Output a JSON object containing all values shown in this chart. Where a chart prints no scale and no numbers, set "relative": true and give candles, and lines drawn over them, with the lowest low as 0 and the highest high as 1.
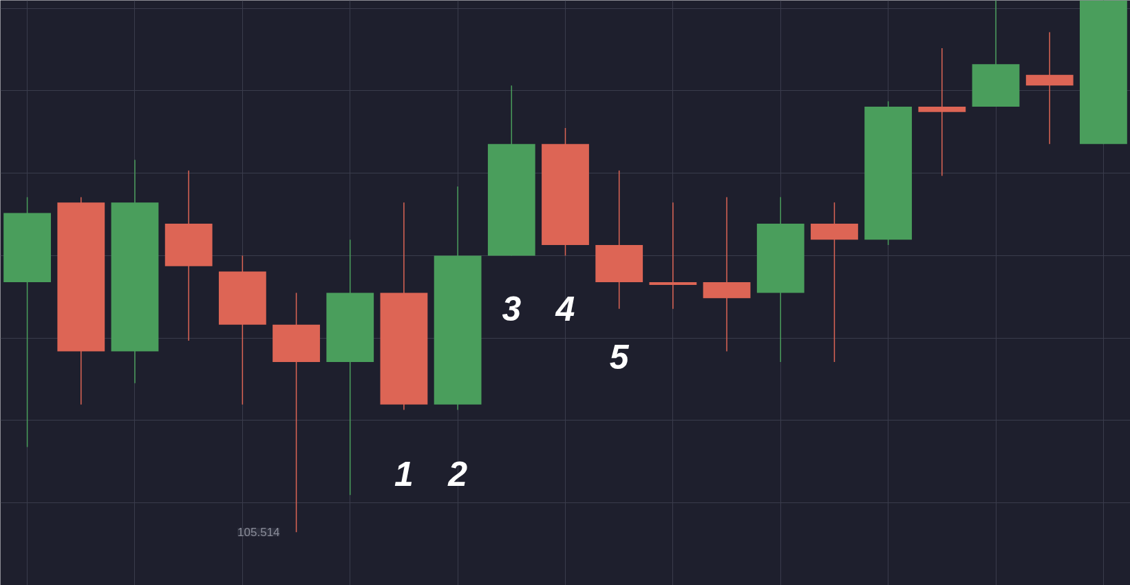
{
  "chart_data": {
    "type": "candlestick",
    "relative": true,
    "grid": true,
    "tick_labels": false,
    "categories": [
      null,
      null,
      null,
      null,
      null,
      null,
      null,
      null,
      null,
      null,
      null,
      null,
      null,
      null,
      null,
      null,
      null,
      null,
      null,
      null,
      null
    ],
    "colors": [
      "#4a9e5c",
      "#dd6555",
      "#4a9e5c",
      "#dd6555",
      "#dd6555",
      "#dd6555",
      "#4a9e5c",
      "#dd6555",
      "#4a9e5c",
      "#4a9e5c",
      "#dd6555",
      "#dd6555",
      "#dd6555",
      "#dd6555",
      "#4a9e5c",
      "#dd6555",
      "#4a9e5c",
      "#dd6555",
      "#4a9e5c",
      "#dd6555",
      "#4a9e5c"
    ],
    "ohlc": [
      [
        0.47,
        0.63,
        0.16,
        0.6
      ],
      [
        0.62,
        0.63,
        0.24,
        0.34
      ],
      [
        0.34,
        0.7,
        0.28,
        0.62
      ],
      [
        0.58,
        0.68,
        0.36,
        0.5
      ],
      [
        0.49,
        0.52,
        0.24,
        0.39
      ],
      [
        0.39,
        0.45,
        0,
        0.32
      ],
      [
        0.32,
        0.55,
        0.07,
        0.45
      ],
      [
        0.45,
        0.62,
        0.23,
        0.24
      ],
      [
        0.24,
        0.65,
        0.23,
        0.52
      ],
      [
        0.52,
        0.84,
        0.52,
        0.73
      ],
      [
        0.73,
        0.76,
        0.52,
        0.54
      ],
      [
        0.54,
        0.68,
        0.42,
        0.47
      ],
      [
        0.47,
        0.62,
        0.42,
        0.465
      ],
      [
        0.47,
        0.63,
        0.34,
        0.44
      ],
      [
        0.45,
        0.63,
        0.32,
        0.58
      ],
      [
        0.58,
        0.62,
        0.32,
        0.55
      ],
      [
        0.55,
        0.81,
        0.54,
        0.8
      ],
      [
        0.8,
        0.91,
        0.67,
        0.79
      ],
      [
        0.8,
        1,
        0.8,
        0.88
      ],
      [
        0.86,
        0.94,
        0.73,
        0.84
      ],
      [
        0.73,
        1,
        0.73,
        1
      ]
    ],
    "annotations": [
      "1",
      "2",
      "3",
      "4",
      "5",
      "105.514"
    ]
  }
}
